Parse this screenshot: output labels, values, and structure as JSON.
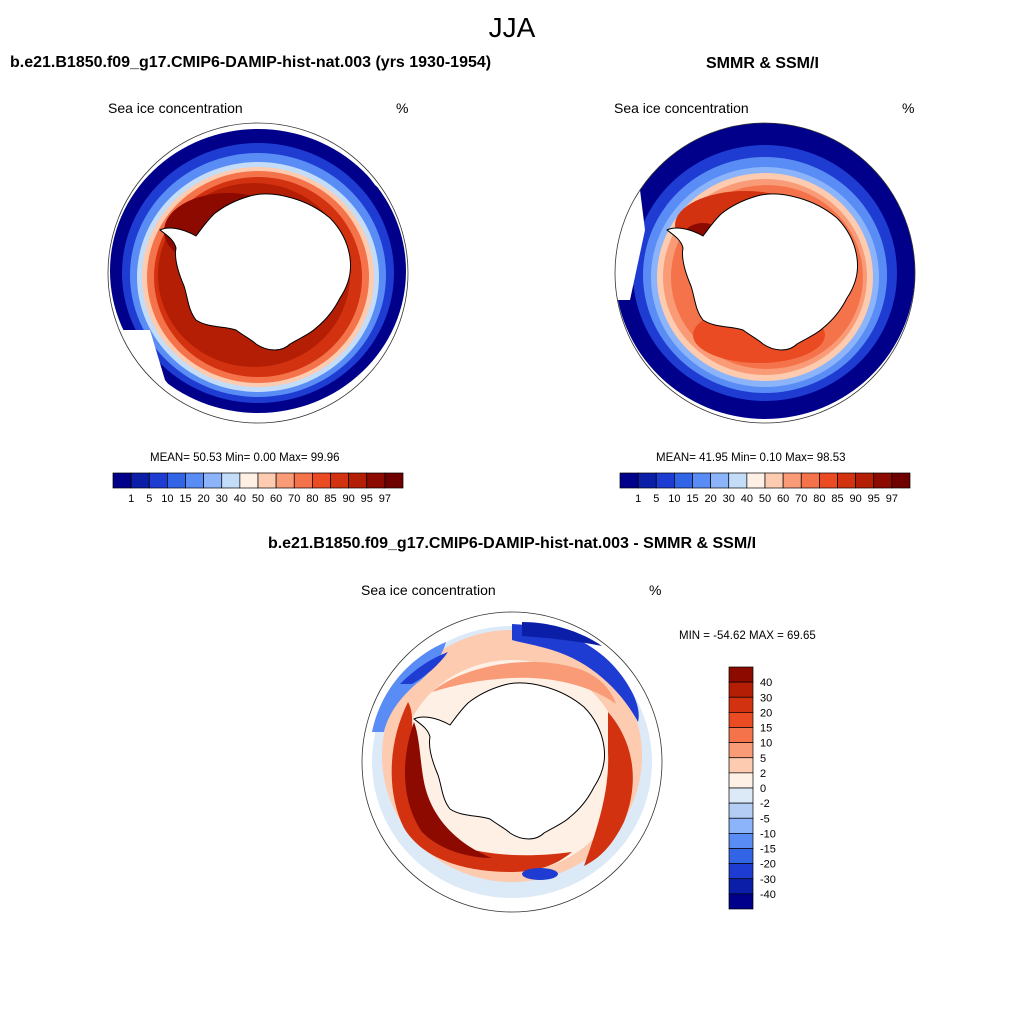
{
  "figure": {
    "season": "JJA"
  },
  "panels": [
    {
      "title": "b.e21.B1850.f09_g17.CMIP6-DAMIP-hist-nat.003 (yrs 1930-1954)",
      "variable": "Sea ice concentration",
      "units": "%",
      "stats": "MEAN=  50.53  Min=   0.00  Max=  99.96"
    },
    {
      "title": "SMMR & SSM/I",
      "variable": "Sea ice concentration",
      "units": "%",
      "stats": "MEAN=  41.95  Min=   0.10  Max=  98.53"
    },
    {
      "title": "b.e21.B1850.f09_g17.CMIP6-DAMIP-hist-nat.003 - SMMR & SSM/I",
      "variable": "Sea ice concentration",
      "units": "%",
      "stats": "MIN = -54.62 MAX =  69.65"
    }
  ],
  "colorbar_concentration": {
    "levels": [
      "1",
      "5",
      "10",
      "15",
      "20",
      "30",
      "40",
      "50",
      "60",
      "70",
      "80",
      "85",
      "90",
      "95",
      "97"
    ],
    "colors": [
      "#00008a",
      "#0a1ea8",
      "#1e3cd2",
      "#3264e6",
      "#5a8cf5",
      "#8cb4fa",
      "#c3dcf8",
      "#fff0e6",
      "#fccbb0",
      "#fa9b78",
      "#f5734b",
      "#eb4b23",
      "#d2320f",
      "#b41e05",
      "#8c0a00",
      "#6e0000"
    ]
  },
  "colorbar_difference": {
    "levels": [
      "40",
      "30",
      "20",
      "15",
      "10",
      "5",
      "2",
      "0",
      "-2",
      "-5",
      "-10",
      "-15",
      "-20",
      "-30",
      "-40"
    ],
    "colors": [
      "#8c0a00",
      "#b41e05",
      "#d2320f",
      "#eb4b23",
      "#f5734b",
      "#fa9b78",
      "#fccbb0",
      "#fff0e6",
      "#dceaf8",
      "#b4cdf5",
      "#8cb4fa",
      "#5a8cf5",
      "#3264e6",
      "#1e3cd2",
      "#0a1ea8",
      "#00008a"
    ]
  }
}
